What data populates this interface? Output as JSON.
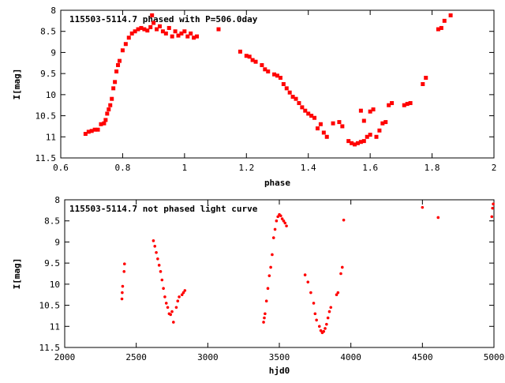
{
  "chart_data": [
    {
      "type": "scatter",
      "title": "115503-5114.7 phased with P=506.0day",
      "xlabel": "phase",
      "ylabel": "I[mag]",
      "xlim": [
        0.6,
        2.0
      ],
      "ylim": [
        11.5,
        8.0
      ],
      "y_inverted": true,
      "grid": false,
      "color": "#ff0000",
      "xticks": [
        "0.6",
        "0.8",
        "1",
        "1.2",
        "1.4",
        "1.6",
        "1.8",
        "2"
      ],
      "yticks": [
        "8",
        "8.5",
        "9",
        "9.5",
        "10",
        "10.5",
        "11",
        "11.5"
      ],
      "xtick_values": [
        0.6,
        0.8,
        1.0,
        1.2,
        1.4,
        1.6,
        1.8,
        2.0
      ],
      "ytick_values": [
        8,
        8.5,
        9,
        9.5,
        10,
        10.5,
        11,
        11.5
      ],
      "series": [
        {
          "points": [
            [
              0.68,
              10.93
            ],
            [
              0.69,
              10.88
            ],
            [
              0.7,
              10.86
            ],
            [
              0.71,
              10.83
            ],
            [
              0.72,
              10.83
            ],
            [
              0.73,
              10.7
            ],
            [
              0.74,
              10.68
            ],
            [
              0.745,
              10.6
            ],
            [
              0.75,
              10.45
            ],
            [
              0.755,
              10.35
            ],
            [
              0.76,
              10.25
            ],
            [
              0.765,
              10.1
            ],
            [
              0.77,
              9.85
            ],
            [
              0.775,
              9.7
            ],
            [
              0.78,
              9.45
            ],
            [
              0.785,
              9.3
            ],
            [
              0.79,
              9.2
            ],
            [
              0.8,
              8.95
            ],
            [
              0.81,
              8.8
            ],
            [
              0.82,
              8.65
            ],
            [
              0.83,
              8.55
            ],
            [
              0.84,
              8.5
            ],
            [
              0.85,
              8.45
            ],
            [
              0.86,
              8.42
            ],
            [
              0.87,
              8.45
            ],
            [
              0.88,
              8.48
            ],
            [
              0.89,
              8.4
            ],
            [
              0.895,
              8.12
            ],
            [
              0.9,
              8.3
            ],
            [
              0.91,
              8.45
            ],
            [
              0.92,
              8.38
            ],
            [
              0.93,
              8.5
            ],
            [
              0.94,
              8.55
            ],
            [
              0.95,
              8.42
            ],
            [
              0.96,
              8.62
            ],
            [
              0.97,
              8.5
            ],
            [
              0.98,
              8.6
            ],
            [
              0.99,
              8.55
            ],
            [
              1.0,
              8.5
            ],
            [
              1.01,
              8.62
            ],
            [
              1.02,
              8.55
            ],
            [
              1.03,
              8.65
            ],
            [
              1.04,
              8.62
            ],
            [
              1.11,
              8.45
            ],
            [
              1.18,
              8.98
            ],
            [
              1.2,
              9.08
            ],
            [
              1.21,
              9.1
            ],
            [
              1.22,
              9.18
            ],
            [
              1.23,
              9.22
            ],
            [
              1.25,
              9.3
            ],
            [
              1.26,
              9.4
            ],
            [
              1.27,
              9.45
            ],
            [
              1.29,
              9.52
            ],
            [
              1.3,
              9.55
            ],
            [
              1.31,
              9.6
            ],
            [
              1.32,
              9.75
            ],
            [
              1.33,
              9.85
            ],
            [
              1.34,
              9.95
            ],
            [
              1.35,
              10.05
            ],
            [
              1.36,
              10.1
            ],
            [
              1.37,
              10.2
            ],
            [
              1.38,
              10.3
            ],
            [
              1.39,
              10.38
            ],
            [
              1.4,
              10.45
            ],
            [
              1.41,
              10.5
            ],
            [
              1.42,
              10.55
            ],
            [
              1.43,
              10.8
            ],
            [
              1.44,
              10.7
            ],
            [
              1.45,
              10.9
            ],
            [
              1.46,
              11.0
            ],
            [
              1.48,
              10.68
            ],
            [
              1.5,
              10.65
            ],
            [
              1.51,
              10.75
            ],
            [
              1.53,
              11.1
            ],
            [
              1.54,
              11.15
            ],
            [
              1.55,
              11.18
            ],
            [
              1.56,
              11.15
            ],
            [
              1.57,
              11.12
            ],
            [
              1.58,
              11.1
            ],
            [
              1.59,
              11.0
            ],
            [
              1.6,
              10.95
            ],
            [
              1.57,
              10.38
            ],
            [
              1.58,
              10.62
            ],
            [
              1.6,
              10.4
            ],
            [
              1.61,
              10.35
            ],
            [
              1.62,
              11.0
            ],
            [
              1.63,
              10.85
            ],
            [
              1.64,
              10.68
            ],
            [
              1.65,
              10.65
            ],
            [
              1.66,
              10.25
            ],
            [
              1.67,
              10.2
            ],
            [
              1.71,
              10.25
            ],
            [
              1.72,
              10.22
            ],
            [
              1.73,
              10.2
            ],
            [
              1.77,
              9.75
            ],
            [
              1.78,
              9.6
            ],
            [
              1.82,
              8.45
            ],
            [
              1.83,
              8.42
            ],
            [
              1.84,
              8.25
            ],
            [
              1.86,
              8.12
            ]
          ]
        }
      ]
    },
    {
      "type": "scatter",
      "title": "115503-5114.7 not phased light curve",
      "xlabel": "hjd0",
      "ylabel": "I[mag]",
      "xlim": [
        2000,
        5000
      ],
      "ylim": [
        11.5,
        8.0
      ],
      "y_inverted": true,
      "grid": false,
      "color": "#ff0000",
      "xticks": [
        "2000",
        "2500",
        "3000",
        "3500",
        "4000",
        "4500",
        "5000"
      ],
      "yticks": [
        "8",
        "8.5",
        "9",
        "9.5",
        "10",
        "10.5",
        "11",
        "11.5"
      ],
      "xtick_values": [
        2000,
        2500,
        3000,
        3500,
        4000,
        4500,
        5000
      ],
      "ytick_values": [
        8,
        8.5,
        9,
        9.5,
        10,
        10.5,
        11,
        11.5
      ],
      "series": [
        {
          "points": [
            [
              2400,
              10.35
            ],
            [
              2402,
              10.2
            ],
            [
              2405,
              10.05
            ],
            [
              2415,
              9.7
            ],
            [
              2418,
              9.52
            ],
            [
              2620,
              8.97
            ],
            [
              2630,
              9.1
            ],
            [
              2640,
              9.25
            ],
            [
              2650,
              9.4
            ],
            [
              2660,
              9.55
            ],
            [
              2670,
              9.7
            ],
            [
              2680,
              9.9
            ],
            [
              2690,
              10.1
            ],
            [
              2700,
              10.3
            ],
            [
              2710,
              10.45
            ],
            [
              2720,
              10.55
            ],
            [
              2730,
              10.7
            ],
            [
              2740,
              10.72
            ],
            [
              2750,
              10.65
            ],
            [
              2760,
              10.9
            ],
            [
              2780,
              10.55
            ],
            [
              2790,
              10.4
            ],
            [
              2800,
              10.3
            ],
            [
              2820,
              10.25
            ],
            [
              2830,
              10.2
            ],
            [
              2840,
              10.15
            ],
            [
              3390,
              10.9
            ],
            [
              3395,
              10.8
            ],
            [
              3400,
              10.7
            ],
            [
              3410,
              10.4
            ],
            [
              3420,
              10.1
            ],
            [
              3430,
              9.8
            ],
            [
              3440,
              9.6
            ],
            [
              3450,
              9.3
            ],
            [
              3460,
              8.9
            ],
            [
              3470,
              8.7
            ],
            [
              3480,
              8.5
            ],
            [
              3490,
              8.4
            ],
            [
              3500,
              8.35
            ],
            [
              3510,
              8.38
            ],
            [
              3520,
              8.45
            ],
            [
              3530,
              8.5
            ],
            [
              3540,
              8.55
            ],
            [
              3550,
              8.62
            ],
            [
              3680,
              9.78
            ],
            [
              3700,
              9.95
            ],
            [
              3720,
              10.2
            ],
            [
              3740,
              10.45
            ],
            [
              3750,
              10.7
            ],
            [
              3760,
              10.85
            ],
            [
              3780,
              11.0
            ],
            [
              3790,
              11.1
            ],
            [
              3800,
              11.15
            ],
            [
              3810,
              11.12
            ],
            [
              3820,
              11.05
            ],
            [
              3830,
              10.95
            ],
            [
              3840,
              10.8
            ],
            [
              3850,
              10.65
            ],
            [
              3860,
              10.55
            ],
            [
              3900,
              10.25
            ],
            [
              3910,
              10.2
            ],
            [
              3930,
              9.75
            ],
            [
              3940,
              9.6
            ],
            [
              3950,
              8.48
            ],
            [
              4500,
              8.18
            ],
            [
              4610,
              8.42
            ],
            [
              4985,
              8.4
            ],
            [
              4990,
              8.2
            ],
            [
              4995,
              8.1
            ]
          ]
        }
      ]
    }
  ]
}
